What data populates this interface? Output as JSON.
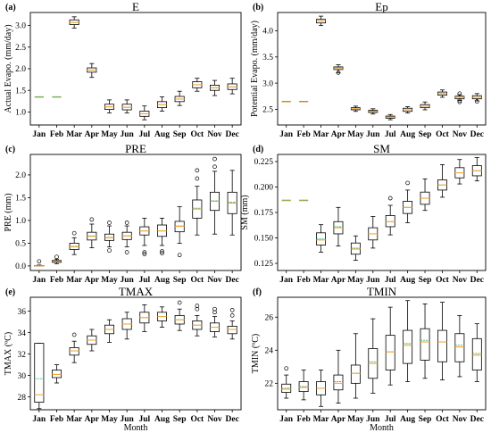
{
  "figure": {
    "months": [
      "Jan",
      "Feb",
      "Mar",
      "Apr",
      "May",
      "Jun",
      "Jul",
      "Aug",
      "Sep",
      "Oct",
      "Nov",
      "Dec"
    ],
    "xlabel": "Month",
    "box_color": "#000000",
    "median_color": "#f4a53a",
    "mean_color": "#3cb371"
  },
  "chart_data": [
    {
      "type": "boxplot",
      "panel": "(a)",
      "title": "E",
      "ylabel": "Actual Evapo. (mm/day)",
      "ylim": [
        0.7,
        3.3
      ],
      "yticks": [
        1.0,
        1.5,
        2.0,
        2.5,
        3.0
      ],
      "ytick_labels": [
        "1.0",
        "1.5",
        "2.0",
        "2.5",
        "3.0"
      ],
      "show_xtick_labels": true,
      "show_xlabel": false,
      "constant": {
        "Jan": 1.35,
        "Feb": 1.35
      },
      "boxes": [
        {
          "m": "Mar",
          "min": 2.94,
          "q1": 3.02,
          "med": 3.07,
          "q3": 3.13,
          "max": 3.2,
          "mean": 3.07,
          "out": []
        },
        {
          "m": "Apr",
          "min": 1.8,
          "q1": 1.92,
          "med": 1.97,
          "q3": 2.02,
          "max": 2.12,
          "mean": 1.97,
          "out": []
        },
        {
          "m": "May",
          "min": 0.98,
          "q1": 1.06,
          "med": 1.12,
          "q3": 1.18,
          "max": 1.28,
          "mean": 1.12,
          "out": []
        },
        {
          "m": "Jun",
          "min": 0.98,
          "q1": 1.05,
          "med": 1.11,
          "q3": 1.18,
          "max": 1.28,
          "mean": 1.11,
          "out": []
        },
        {
          "m": "Jul",
          "min": 0.82,
          "q1": 0.9,
          "med": 0.96,
          "q3": 1.02,
          "max": 1.14,
          "mean": 0.96,
          "out": []
        },
        {
          "m": "Aug",
          "min": 1.02,
          "q1": 1.1,
          "med": 1.17,
          "q3": 1.24,
          "max": 1.35,
          "mean": 1.17,
          "out": []
        },
        {
          "m": "Sep",
          "min": 1.15,
          "q1": 1.24,
          "med": 1.3,
          "q3": 1.36,
          "max": 1.48,
          "mean": 1.3,
          "out": []
        },
        {
          "m": "Oct",
          "min": 1.48,
          "q1": 1.56,
          "med": 1.63,
          "q3": 1.7,
          "max": 1.78,
          "mean": 1.63,
          "out": []
        },
        {
          "m": "Nov",
          "min": 1.38,
          "q1": 1.5,
          "med": 1.56,
          "q3": 1.62,
          "max": 1.73,
          "mean": 1.56,
          "out": []
        },
        {
          "m": "Dec",
          "min": 1.42,
          "q1": 1.52,
          "med": 1.58,
          "q3": 1.65,
          "max": 1.78,
          "mean": 1.58,
          "out": []
        }
      ]
    },
    {
      "type": "boxplot",
      "panel": "(b)",
      "title": "Ep",
      "ylabel": "Potential Evapo. (mm/day)",
      "ylim": [
        2.2,
        4.35
      ],
      "yticks": [
        2.5,
        3.0,
        3.5,
        4.0
      ],
      "ytick_labels": [
        "2.5",
        "3.0",
        "3.5",
        "4.0"
      ],
      "show_xtick_labels": true,
      "show_xlabel": false,
      "constant": {
        "Jan": 2.65,
        "Feb": 2.65
      },
      "boxes": [
        {
          "m": "Mar",
          "min": 4.1,
          "q1": 4.15,
          "med": 4.19,
          "q3": 4.22,
          "max": 4.28,
          "mean": 4.19,
          "out": []
        },
        {
          "m": "Apr",
          "min": 3.2,
          "q1": 3.26,
          "med": 3.29,
          "q3": 3.31,
          "max": 3.35,
          "mean": 3.29,
          "out": [
            3.2
          ]
        },
        {
          "m": "May",
          "min": 2.46,
          "q1": 2.49,
          "med": 2.51,
          "q3": 2.53,
          "max": 2.56,
          "mean": 2.51,
          "out": []
        },
        {
          "m": "Jun",
          "min": 2.41,
          "q1": 2.44,
          "med": 2.46,
          "q3": 2.48,
          "max": 2.51,
          "mean": 2.46,
          "out": []
        },
        {
          "m": "Jul",
          "min": 2.3,
          "q1": 2.33,
          "med": 2.35,
          "q3": 2.37,
          "max": 2.4,
          "mean": 2.35,
          "out": []
        },
        {
          "m": "Aug",
          "min": 2.43,
          "q1": 2.46,
          "med": 2.49,
          "q3": 2.52,
          "max": 2.55,
          "mean": 2.49,
          "out": []
        },
        {
          "m": "Sep",
          "min": 2.49,
          "q1": 2.53,
          "med": 2.56,
          "q3": 2.59,
          "max": 2.64,
          "mean": 2.56,
          "out": []
        },
        {
          "m": "Oct",
          "min": 2.73,
          "q1": 2.77,
          "med": 2.8,
          "q3": 2.83,
          "max": 2.87,
          "mean": 2.8,
          "out": []
        },
        {
          "m": "Nov",
          "min": 2.67,
          "q1": 2.7,
          "med": 2.73,
          "q3": 2.75,
          "max": 2.78,
          "mean": 2.73,
          "out": [
            2.64,
            2.67,
            2.8
          ]
        },
        {
          "m": "Dec",
          "min": 2.66,
          "q1": 2.7,
          "med": 2.73,
          "q3": 2.76,
          "max": 2.8,
          "mean": 2.73,
          "out": [
            2.65
          ]
        }
      ]
    },
    {
      "type": "boxplot",
      "panel": "(c)",
      "title": "PRE",
      "ylabel": "PRE (mm)",
      "ylim": [
        -0.1,
        2.45
      ],
      "yticks": [
        0.0,
        0.5,
        1.0,
        1.5,
        2.0
      ],
      "ytick_labels": [
        "0.0",
        "0.5",
        "1.0",
        "1.5",
        "2.0"
      ],
      "show_xtick_labels": true,
      "show_xlabel": false,
      "constant": {},
      "boxes": [
        {
          "m": "Jan",
          "min": 0.0,
          "q1": 0.0,
          "med": 0.0,
          "q3": 0.01,
          "max": 0.02,
          "mean": 0.01,
          "out": [
            0.1
          ]
        },
        {
          "m": "Feb",
          "min": 0.05,
          "q1": 0.08,
          "med": 0.1,
          "q3": 0.12,
          "max": 0.15,
          "mean": 0.1,
          "out": [
            0.2
          ]
        },
        {
          "m": "Mar",
          "min": 0.25,
          "q1": 0.36,
          "med": 0.42,
          "q3": 0.5,
          "max": 0.62,
          "mean": 0.43,
          "out": [
            0.72
          ]
        },
        {
          "m": "Apr",
          "min": 0.4,
          "q1": 0.57,
          "med": 0.65,
          "q3": 0.74,
          "max": 0.92,
          "mean": 0.66,
          "out": [
            1.02
          ]
        },
        {
          "m": "May",
          "min": 0.42,
          "q1": 0.56,
          "med": 0.62,
          "q3": 0.7,
          "max": 0.88,
          "mean": 0.63,
          "out": [
            0.34,
            0.95
          ]
        },
        {
          "m": "Jun",
          "min": 0.42,
          "q1": 0.58,
          "med": 0.66,
          "q3": 0.74,
          "max": 0.88,
          "mean": 0.66,
          "out": [
            0.3,
            0.95
          ]
        },
        {
          "m": "Jul",
          "min": 0.45,
          "q1": 0.68,
          "med": 0.77,
          "q3": 0.86,
          "max": 1.05,
          "mean": 0.77,
          "out": [
            0.26,
            0.3
          ]
        },
        {
          "m": "Aug",
          "min": 0.45,
          "q1": 0.65,
          "med": 0.77,
          "q3": 0.9,
          "max": 1.05,
          "mean": 0.77,
          "out": [
            0.28,
            0.32
          ]
        },
        {
          "m": "Sep",
          "min": 0.5,
          "q1": 0.75,
          "med": 0.87,
          "q3": 0.98,
          "max": 1.3,
          "mean": 0.88,
          "out": [
            0.24
          ]
        },
        {
          "m": "Oct",
          "min": 0.68,
          "q1": 1.05,
          "med": 1.25,
          "q3": 1.45,
          "max": 1.75,
          "mean": 1.27,
          "out": [
            1.92,
            2.1
          ]
        },
        {
          "m": "Nov",
          "min": 0.7,
          "q1": 1.22,
          "med": 1.42,
          "q3": 1.62,
          "max": 2.08,
          "mean": 1.43,
          "out": [
            2.18,
            2.35
          ]
        },
        {
          "m": "Dec",
          "min": 0.68,
          "q1": 1.15,
          "med": 1.38,
          "q3": 1.62,
          "max": 2.1,
          "mean": 1.4,
          "out": []
        }
      ]
    },
    {
      "type": "boxplot",
      "panel": "(d)",
      "title": "SM",
      "ylabel": "SM (mm)",
      "ylim": [
        0.118,
        0.232
      ],
      "yticks": [
        0.125,
        0.15,
        0.175,
        0.2,
        0.225
      ],
      "ytick_labels": [
        "0.125",
        "0.150",
        "0.175",
        "0.200",
        "0.225"
      ],
      "show_xtick_labels": true,
      "show_xlabel": false,
      "constant": {
        "Jan": 0.187,
        "Feb": 0.187
      },
      "boxes": [
        {
          "m": "Mar",
          "min": 0.136,
          "q1": 0.143,
          "med": 0.148,
          "q3": 0.155,
          "max": 0.163,
          "mean": 0.149,
          "out": []
        },
        {
          "m": "Apr",
          "min": 0.142,
          "q1": 0.154,
          "med": 0.16,
          "q3": 0.166,
          "max": 0.18,
          "mean": 0.161,
          "out": []
        },
        {
          "m": "May",
          "min": 0.128,
          "q1": 0.134,
          "med": 0.139,
          "q3": 0.145,
          "max": 0.152,
          "mean": 0.14,
          "out": []
        },
        {
          "m": "Jun",
          "min": 0.14,
          "q1": 0.148,
          "med": 0.154,
          "q3": 0.16,
          "max": 0.171,
          "mean": 0.154,
          "out": []
        },
        {
          "m": "Jul",
          "min": 0.153,
          "q1": 0.161,
          "med": 0.166,
          "q3": 0.172,
          "max": 0.182,
          "mean": 0.166,
          "out": [
            0.189
          ]
        },
        {
          "m": "Aug",
          "min": 0.165,
          "q1": 0.174,
          "med": 0.18,
          "q3": 0.186,
          "max": 0.197,
          "mean": 0.18,
          "out": [
            0.204
          ]
        },
        {
          "m": "Sep",
          "min": 0.177,
          "q1": 0.183,
          "med": 0.189,
          "q3": 0.195,
          "max": 0.208,
          "mean": 0.189,
          "out": []
        },
        {
          "m": "Oct",
          "min": 0.19,
          "q1": 0.197,
          "med": 0.202,
          "q3": 0.207,
          "max": 0.222,
          "mean": 0.202,
          "out": []
        },
        {
          "m": "Nov",
          "min": 0.203,
          "q1": 0.209,
          "med": 0.214,
          "q3": 0.219,
          "max": 0.227,
          "mean": 0.214,
          "out": []
        },
        {
          "m": "Dec",
          "min": 0.206,
          "q1": 0.211,
          "med": 0.216,
          "q3": 0.221,
          "max": 0.229,
          "mean": 0.216,
          "out": []
        }
      ]
    },
    {
      "type": "boxplot",
      "panel": "(e)",
      "title": "TMAX",
      "ylabel": "TMAX (ºC)",
      "ylim": [
        26.8,
        37.3
      ],
      "yticks": [
        28,
        30,
        32,
        34,
        36
      ],
      "ytick_labels": [
        "28",
        "30",
        "32",
        "34",
        "36"
      ],
      "show_xtick_labels": true,
      "show_xlabel": true,
      "constant": {},
      "boxes": [
        {
          "m": "Jan",
          "min": 26.9,
          "q1": 27.5,
          "med": 28.2,
          "q3": 33.0,
          "max": 33.0,
          "mean": 29.7,
          "out": []
        },
        {
          "m": "Feb",
          "min": 29.3,
          "q1": 29.8,
          "med": 30.1,
          "q3": 30.5,
          "max": 31.0,
          "mean": 30.1,
          "out": []
        },
        {
          "m": "Mar",
          "min": 31.2,
          "q1": 31.9,
          "med": 32.3,
          "q3": 32.6,
          "max": 33.2,
          "mean": 32.3,
          "out": [
            33.8
          ]
        },
        {
          "m": "Apr",
          "min": 32.3,
          "q1": 32.9,
          "med": 33.3,
          "q3": 33.7,
          "max": 34.3,
          "mean": 33.3,
          "out": []
        },
        {
          "m": "May",
          "min": 33.1,
          "q1": 33.9,
          "med": 34.3,
          "q3": 34.7,
          "max": 35.2,
          "mean": 34.3,
          "out": []
        },
        {
          "m": "Jun",
          "min": 33.4,
          "q1": 34.3,
          "med": 34.8,
          "q3": 35.3,
          "max": 35.9,
          "mean": 34.8,
          "out": []
        },
        {
          "m": "Jul",
          "min": 34.1,
          "q1": 34.9,
          "med": 35.4,
          "q3": 35.9,
          "max": 36.6,
          "mean": 35.4,
          "out": []
        },
        {
          "m": "Aug",
          "min": 34.5,
          "q1": 35.1,
          "med": 35.5,
          "q3": 35.9,
          "max": 36.4,
          "mean": 35.5,
          "out": []
        },
        {
          "m": "Sep",
          "min": 34.2,
          "q1": 34.8,
          "med": 35.2,
          "q3": 35.6,
          "max": 36.2,
          "mean": 35.2,
          "out": [
            36.8
          ]
        },
        {
          "m": "Oct",
          "min": 33.7,
          "q1": 34.3,
          "med": 34.7,
          "q3": 35.1,
          "max": 35.6,
          "mean": 34.7,
          "out": [
            36.2,
            36.5
          ]
        },
        {
          "m": "Nov",
          "min": 33.6,
          "q1": 34.1,
          "med": 34.5,
          "q3": 34.9,
          "max": 35.5,
          "mean": 34.5,
          "out": [
            35.9,
            36.2
          ]
        },
        {
          "m": "Dec",
          "min": 33.4,
          "q1": 33.9,
          "med": 34.3,
          "q3": 34.6,
          "max": 35.1,
          "mean": 34.3,
          "out": [
            35.6,
            36.1
          ]
        }
      ]
    },
    {
      "type": "boxplot",
      "panel": "(f)",
      "title": "TMIN",
      "ylabel": "TMIN (ºC)",
      "ylim": [
        20.4,
        27.2
      ],
      "yticks": [
        22,
        24,
        26
      ],
      "ytick_labels": [
        "22",
        "24",
        "26"
      ],
      "show_xtick_labels": true,
      "show_xlabel": true,
      "constant": {},
      "boxes": [
        {
          "m": "Jan",
          "min": 21.1,
          "q1": 21.45,
          "med": 21.65,
          "q3": 21.95,
          "max": 22.5,
          "mean": 21.7,
          "out": [
            22.9
          ]
        },
        {
          "m": "Feb",
          "min": 21.0,
          "q1": 21.5,
          "med": 21.75,
          "q3": 22.1,
          "max": 22.8,
          "mean": 21.8,
          "out": []
        },
        {
          "m": "Mar",
          "min": 20.6,
          "q1": 21.3,
          "med": 21.7,
          "q3": 22.1,
          "max": 22.8,
          "mean": 21.7,
          "out": []
        },
        {
          "m": "Apr",
          "min": 20.8,
          "q1": 21.6,
          "med": 22.0,
          "q3": 22.5,
          "max": 24.0,
          "mean": 22.1,
          "out": []
        },
        {
          "m": "May",
          "min": 21.1,
          "q1": 22.0,
          "med": 22.6,
          "q3": 23.1,
          "max": 25.0,
          "mean": 22.6,
          "out": []
        },
        {
          "m": "Jun",
          "min": 21.4,
          "q1": 22.3,
          "med": 23.2,
          "q3": 24.1,
          "max": 25.9,
          "mean": 23.3,
          "out": []
        },
        {
          "m": "Jul",
          "min": 21.9,
          "q1": 22.8,
          "med": 23.9,
          "q3": 24.9,
          "max": 26.6,
          "mean": 23.9,
          "out": []
        },
        {
          "m": "Aug",
          "min": 22.1,
          "q1": 23.2,
          "med": 24.3,
          "q3": 25.2,
          "max": 27.0,
          "mean": 24.4,
          "out": []
        },
        {
          "m": "Sep",
          "min": 22.3,
          "q1": 23.4,
          "med": 24.5,
          "q3": 25.3,
          "max": 26.8,
          "mean": 24.6,
          "out": []
        },
        {
          "m": "Oct",
          "min": 22.2,
          "q1": 23.3,
          "med": 24.5,
          "q3": 25.2,
          "max": 26.9,
          "mean": 24.5,
          "out": []
        },
        {
          "m": "Nov",
          "min": 22.4,
          "q1": 23.3,
          "med": 24.2,
          "q3": 25.0,
          "max": 26.1,
          "mean": 24.3,
          "out": []
        },
        {
          "m": "Dec",
          "min": 22.1,
          "q1": 22.8,
          "med": 23.7,
          "q3": 24.7,
          "max": 25.6,
          "mean": 23.8,
          "out": []
        }
      ]
    }
  ]
}
